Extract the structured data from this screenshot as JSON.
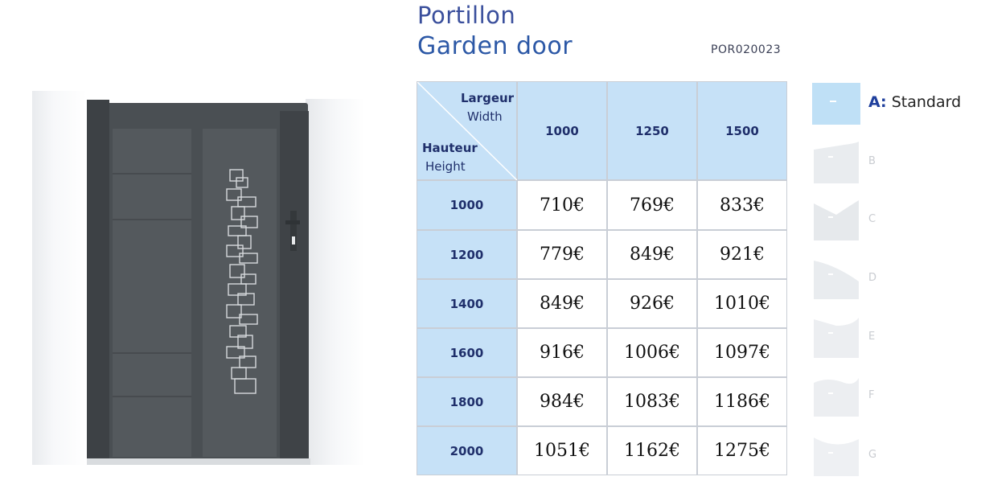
{
  "header": {
    "title_fr": "Portillon",
    "title_en": "Garden door",
    "reference": "POR020023"
  },
  "table": {
    "width_label_fr": "Largeur",
    "width_label_en": "Width",
    "height_label_fr": "Hauteur",
    "height_label_en": "Height",
    "columns": [
      "1000",
      "1250",
      "1500"
    ],
    "rows": [
      {
        "height": "1000",
        "prices": [
          "710€",
          "769€",
          "833€"
        ]
      },
      {
        "height": "1200",
        "prices": [
          "779€",
          "849€",
          "921€"
        ]
      },
      {
        "height": "1400",
        "prices": [
          "849€",
          "926€",
          "1010€"
        ]
      },
      {
        "height": "1600",
        "prices": [
          "916€",
          "1006€",
          "1097€"
        ]
      },
      {
        "height": "1800",
        "prices": [
          "984€",
          "1083€",
          "1186€"
        ]
      },
      {
        "height": "2000",
        "prices": [
          "1051€",
          "1162€",
          "1275€"
        ]
      }
    ]
  },
  "models": {
    "selected_letter": "A:",
    "selected_name": "Standard",
    "others": [
      "B",
      "C",
      "D",
      "E",
      "F",
      "G"
    ]
  },
  "colors": {
    "header_blue": "#c6e1f7",
    "gate_grey": "#4a4f53",
    "title_blue": "#2c58a6"
  }
}
